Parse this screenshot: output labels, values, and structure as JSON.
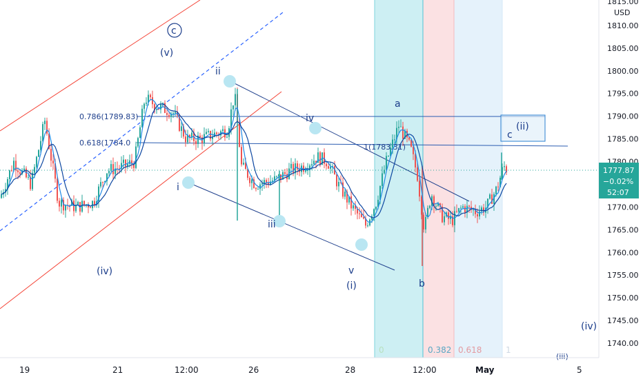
{
  "chart_data": {
    "type": "candlestick",
    "currency": "USD",
    "ylim": [
      1736,
      1816
    ],
    "price_ticks": [
      "1815.00",
      "1810.00",
      "1805.00",
      "1800.00",
      "1795.00",
      "1790.00",
      "1785.00",
      "1780.00",
      "1775.00",
      "1770.00",
      "1765.00",
      "1760.00",
      "1755.00",
      "1750.00",
      "1745.00",
      "1740.00"
    ],
    "time_ticks": [
      "19",
      "21",
      "12:00",
      "26",
      "28",
      "12:00",
      "May",
      "5"
    ],
    "last_price": "1777.87",
    "change": "−0.02%",
    "countdown": "52:07",
    "wave_labels_blue": [
      "(v)",
      "ii",
      "iv",
      "i",
      "iii",
      "v",
      "(i)",
      "(iv)",
      "a",
      "b",
      "c",
      "(ii)",
      "(iv)",
      "(iii)"
    ],
    "wave_label_circled": "c",
    "fib_labels_left": [
      "0.786(1789.83)",
      "0.618(1784.0"
    ],
    "fib_label_mid": "1(1783.31)",
    "fib_time_labels": [
      "0",
      "0.382",
      "0.618",
      "1"
    ],
    "colors": {
      "up": "#26a69a",
      "down": "#ef5350",
      "fast_ma": "#1e88e5",
      "slow_ma": "#0d47a1",
      "label": "#1a3c8a",
      "channel_red": "#f44336",
      "fib_teal": "#cdeff3",
      "fib_red": "#fbe1e3",
      "fib_blue": "#e5f2fb"
    }
  }
}
